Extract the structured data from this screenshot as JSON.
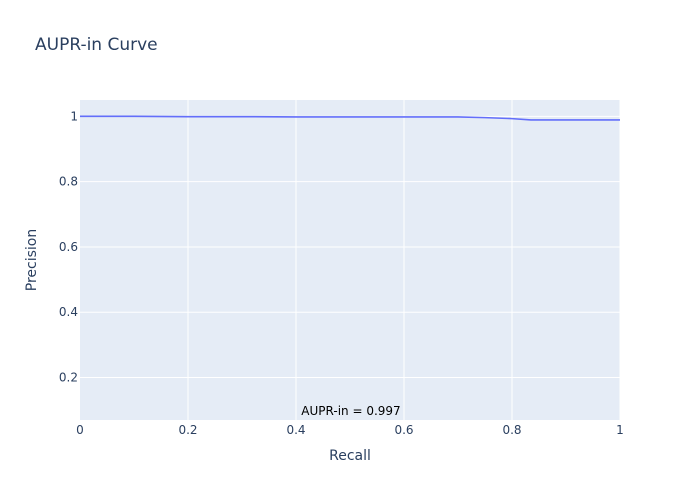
{
  "chart_data": {
    "type": "line",
    "title": "AUPR-in Curve",
    "xlabel": "Recall",
    "ylabel": "Precision",
    "xlim": [
      0,
      1
    ],
    "ylim": [
      0.07,
      1.05
    ],
    "x_ticks": [
      0,
      0.2,
      0.4,
      0.6,
      0.8,
      1
    ],
    "x_tick_labels": [
      "0",
      "0.2",
      "0.4",
      "0.6",
      "0.8",
      "1"
    ],
    "y_ticks": [
      0.2,
      0.4,
      0.6,
      0.8,
      1
    ],
    "y_tick_labels": [
      "0.2",
      "0.4",
      "0.6",
      "0.8",
      "1"
    ],
    "grid": true,
    "series": [
      {
        "color": "#636efa",
        "x": [
          0,
          0.1,
          0.2,
          0.3,
          0.4,
          0.5,
          0.6,
          0.7,
          0.75,
          0.8,
          0.835,
          0.9,
          1
        ],
        "y": [
          1.0,
          1.0,
          0.999,
          0.999,
          0.998,
          0.998,
          0.998,
          0.998,
          0.996,
          0.993,
          0.989,
          0.989,
          0.989
        ]
      }
    ],
    "annotation": {
      "text": "AUPR-in = 0.997",
      "x": 0.5,
      "y": 0.07
    }
  },
  "colors": {
    "plot_background": "#e5ecf6",
    "grid": "#ffffff",
    "line": "#636efa",
    "text": "#2a3f5f"
  }
}
